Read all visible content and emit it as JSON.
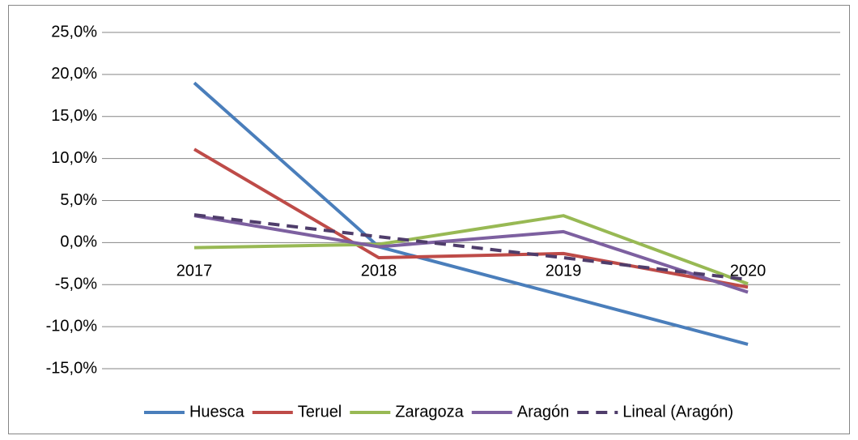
{
  "chart_data": {
    "type": "line",
    "categories": [
      "2017",
      "2018",
      "2019",
      "2020"
    ],
    "series": [
      {
        "name": "Huesca",
        "color": "#4a7ebb",
        "values": [
          19.0,
          -0.5,
          -6.3,
          -12.1
        ]
      },
      {
        "name": "Teruel",
        "color": "#be4b48",
        "values": [
          11.1,
          -1.8,
          -1.3,
          -5.3
        ]
      },
      {
        "name": "Zaragoza",
        "color": "#98b954",
        "values": [
          -0.6,
          -0.2,
          3.2,
          -4.9
        ]
      },
      {
        "name": "Aragón",
        "color": "#7d60a0",
        "values": [
          3.2,
          -0.5,
          1.3,
          -5.9
        ]
      },
      {
        "name": "Lineal (Aragón)",
        "color": "#4f3d6b",
        "dashed": true,
        "values": [
          3.3,
          0.7,
          -1.8,
          -4.4
        ]
      }
    ],
    "ylim": [
      -15,
      25
    ],
    "yticks": [
      {
        "value": -15,
        "label": "-15,0%"
      },
      {
        "value": -10,
        "label": "-10,0%"
      },
      {
        "value": -5,
        "label": "-5,0%"
      },
      {
        "value": 0,
        "label": "0,0%"
      },
      {
        "value": 5,
        "label": "5,0%"
      },
      {
        "value": 10,
        "label": "10,0%"
      },
      {
        "value": 15,
        "label": "15,0%"
      },
      {
        "value": 20,
        "label": "20,0%"
      },
      {
        "value": 25,
        "label": "25,0%"
      }
    ],
    "grid": true,
    "legend": "bottom"
  }
}
